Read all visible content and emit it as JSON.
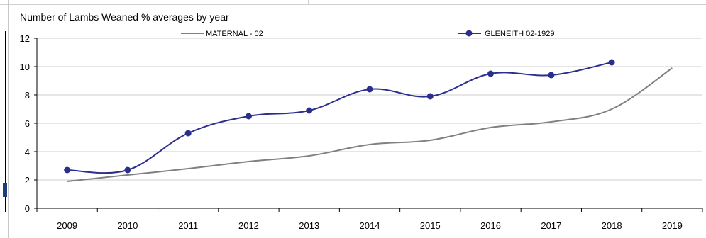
{
  "chart_data": {
    "type": "line",
    "title": "Number of Lambs Weaned % averages by year",
    "categories": [
      "2009",
      "2010",
      "2011",
      "2012",
      "2013",
      "2014",
      "2015",
      "2016",
      "2017",
      "2018",
      "2019"
    ],
    "ylim": [
      0,
      12
    ],
    "yticks": [
      "0",
      "2",
      "4",
      "6",
      "8",
      "10",
      "12"
    ],
    "grid": true,
    "legend": "top",
    "series": [
      {
        "name": "MATERNAL - 02",
        "color": "#808080",
        "marker": false,
        "values": [
          1.9,
          2.35,
          2.8,
          3.3,
          3.7,
          4.5,
          4.8,
          5.7,
          6.1,
          7.0,
          9.9
        ]
      },
      {
        "name": "GLENEITH 02-1929",
        "color": "#2b2f8c",
        "marker": true,
        "values": [
          2.7,
          2.7,
          5.3,
          6.5,
          6.9,
          8.4,
          7.9,
          9.5,
          9.4,
          10.3,
          null
        ]
      }
    ]
  }
}
